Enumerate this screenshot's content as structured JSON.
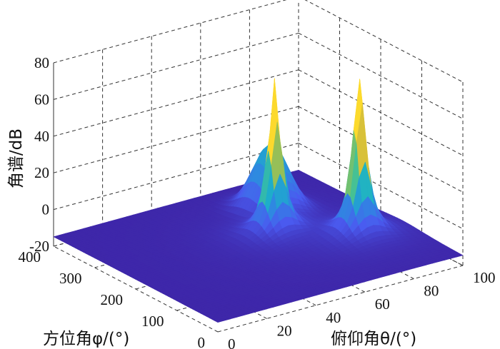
{
  "chart_data": {
    "type": "surface",
    "title": "",
    "zlabel": "角谱/dB",
    "xlabel": "方位角φ/(°)",
    "ylabel": "俯仰角θ/(°)",
    "x_name": "phi",
    "x_range": [
      0,
      400
    ],
    "x_ticks": [
      "0",
      "100",
      "200",
      "300",
      "400"
    ],
    "y_name": "theta",
    "y_range": [
      0,
      100
    ],
    "y_ticks": [
      "0",
      "20",
      "40",
      "60",
      "80",
      "100"
    ],
    "z_range": [
      -20,
      80
    ],
    "z_ticks": [
      "-20",
      "0",
      "20",
      "40",
      "60",
      "80"
    ],
    "floor_level": -15,
    "peaks": [
      {
        "phi": 220,
        "theta": 60,
        "value": 70
      },
      {
        "phi": 145,
        "theta": 82,
        "value": 75
      }
    ],
    "ridge": {
      "phi": 300,
      "theta": 72,
      "value": 20
    },
    "grid": true,
    "colormap": [
      "#3e26a8",
      "#4a5bf0",
      "#2e8ae0",
      "#1cb1c8",
      "#4cc38c",
      "#c0bc3a",
      "#fec938",
      "#f9fb15"
    ]
  }
}
